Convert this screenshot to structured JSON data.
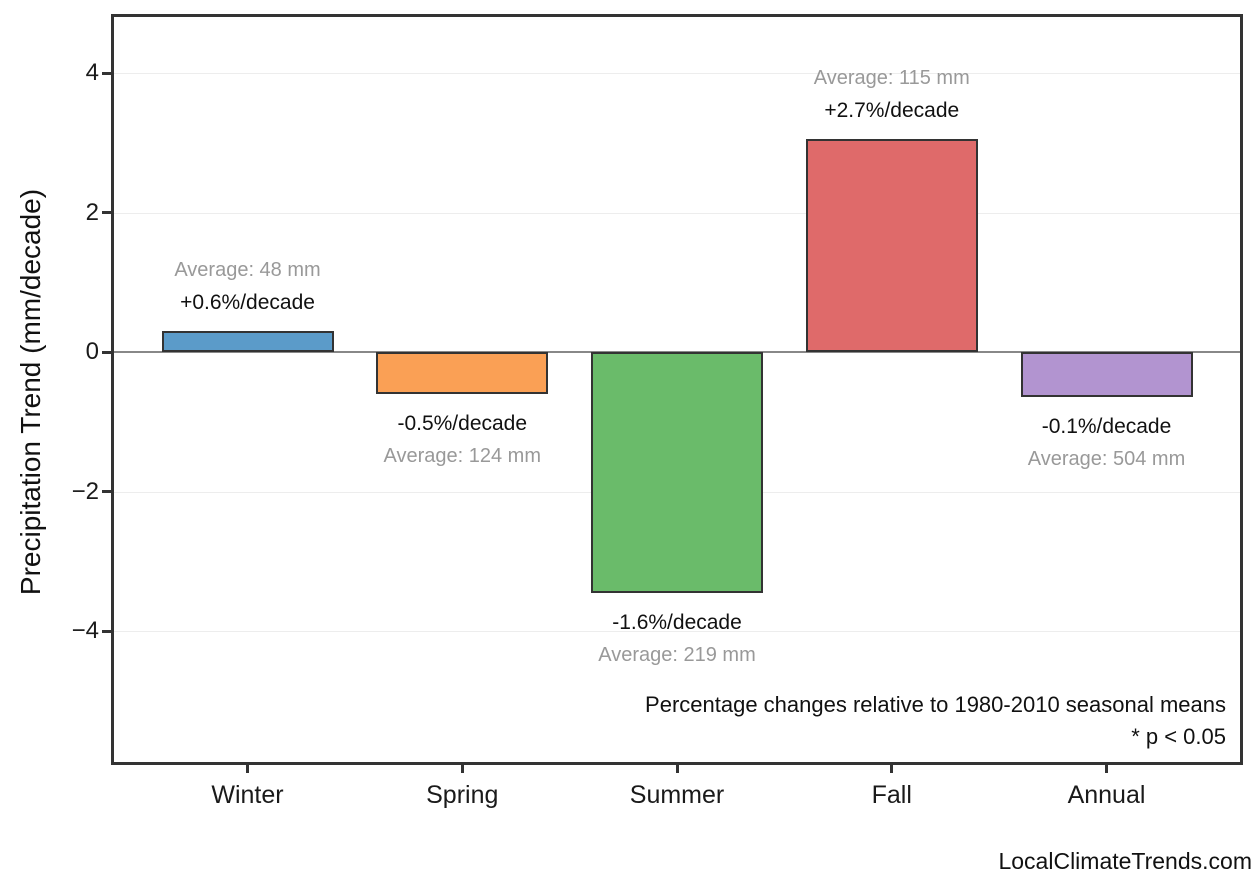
{
  "page": {
    "watermark": "LocalClimateTrends.com"
  },
  "chart_data": {
    "type": "bar",
    "title": "",
    "xlabel": "",
    "ylabel": "Precipitation Trend (mm/decade)",
    "categories": [
      "Winter",
      "Spring",
      "Summer",
      "Fall",
      "Annual"
    ],
    "values": [
      0.3,
      -0.6,
      -3.45,
      3.05,
      -0.65
    ],
    "bar_colors": [
      "#5B9BC9",
      "#FAA055",
      "#6ABB6A",
      "#DF6A6A",
      "#B294D0"
    ],
    "pct_labels": [
      "+0.6%/decade",
      "-0.5%/decade",
      "-1.6%/decade",
      "+2.7%/decade",
      "-0.1%/decade"
    ],
    "avg_labels": [
      "Average: 48 mm",
      "Average: 124 mm",
      "Average: 219 mm",
      "Average: 115 mm",
      "Average: 504 mm"
    ],
    "yticks": [
      -4,
      -2,
      0,
      2,
      4
    ],
    "ytick_labels": [
      "−4",
      "−2",
      "0",
      "2",
      "4"
    ],
    "ylim": [
      -5.9,
      4.85
    ],
    "grid": "horizontal-light",
    "zero_line": true,
    "legend": "none",
    "notes": [
      "Percentage changes relative to 1980-2010 seasonal means",
      "* p < 0.05"
    ],
    "style": {
      "frame_color": "#333333",
      "bar_border_color": "#333333",
      "grid_color": "#ededed",
      "zero_line_color": "#888888",
      "pct_label_color": "#111111",
      "avg_label_color": "#999999"
    }
  }
}
